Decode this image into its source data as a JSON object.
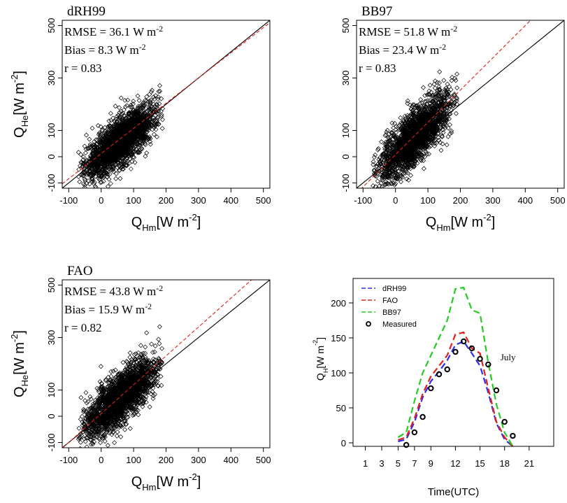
{
  "chart_data": [
    {
      "type": "scatter",
      "title": "dRH99",
      "stats": [
        "RMSE = 36.1 W m-2",
        "Bias = 8.3 W m-2",
        "r = 0.83"
      ],
      "xlabel": "Q_Hm[W m^-2]",
      "ylabel": "Q_He[W m^-2]",
      "xlim": [
        -120,
        520
      ],
      "ylim": [
        -120,
        520
      ],
      "xticks": [
        -100,
        0,
        100,
        200,
        300,
        400,
        500
      ],
      "yticks": [
        -100,
        0,
        100,
        300,
        500
      ],
      "lines": [
        {
          "kind": "one-to-one",
          "color": "#000000",
          "slope": 1,
          "intercept": 0
        },
        {
          "kind": "fit",
          "color": "#e0201b",
          "slope": 0.96,
          "intercept": 12
        }
      ],
      "cloud": {
        "x_range": [
          -70,
          190
        ],
        "center_x": 60,
        "center_y": 60,
        "spread_y": 45,
        "slope": 0.95
      }
    },
    {
      "type": "scatter",
      "title": "BB97",
      "stats": [
        "RMSE = 51.8 W m-2",
        "Bias = 23.4 W m-2",
        "r = 0.83"
      ],
      "xlabel": "Q_Hm[W m^-2]",
      "ylabel": "",
      "xlim": [
        -120,
        520
      ],
      "ylim": [
        -120,
        520
      ],
      "xticks": [
        -100,
        0,
        100,
        200,
        300,
        400,
        500
      ],
      "yticks": [
        -100,
        0,
        100,
        300,
        500
      ],
      "lines": [
        {
          "kind": "one-to-one",
          "color": "#000000",
          "slope": 1,
          "intercept": 0
        },
        {
          "kind": "fit",
          "color": "#e0201b",
          "slope": 1.23,
          "intercept": 8
        }
      ],
      "cloud": {
        "x_range": [
          -70,
          190
        ],
        "center_x": 60,
        "center_y": 75,
        "spread_y": 50,
        "slope": 1.15
      }
    },
    {
      "type": "scatter",
      "title": "FAO",
      "stats": [
        "RMSE = 43.8 W m-2",
        "Bias = 15.9 W m-2",
        "r = 0.82"
      ],
      "xlabel": "Q_Hm[W m^-2]",
      "ylabel": "Q_He[W m^-2]",
      "xlim": [
        -120,
        520
      ],
      "ylim": [
        -120,
        520
      ],
      "xticks": [
        -100,
        0,
        100,
        200,
        300,
        400,
        500
      ],
      "yticks": [
        -100,
        0,
        100,
        300,
        500
      ],
      "lines": [
        {
          "kind": "one-to-one",
          "color": "#000000",
          "slope": 1,
          "intercept": 0
        },
        {
          "kind": "fit",
          "color": "#e0201b",
          "slope": 1.1,
          "intercept": 10
        }
      ],
      "cloud": {
        "x_range": [
          -70,
          190
        ],
        "center_x": 60,
        "center_y": 70,
        "spread_y": 47,
        "slope": 1.05
      }
    },
    {
      "type": "line",
      "title": "",
      "annotation": "July",
      "xlabel": "Time(UTC)",
      "ylabel": "Q_H[W m^-2]",
      "xlim": [
        -0.5,
        24
      ],
      "ylim": [
        -5,
        235
      ],
      "xticks": [
        1,
        3,
        5,
        7,
        9,
        12,
        15,
        18,
        21
      ],
      "yticks": [
        0,
        50,
        100,
        150,
        200
      ],
      "legend": "top-left",
      "series": [
        {
          "name": "dRH99",
          "color": "#2d2df0",
          "style": "dashed",
          "x": [
            5,
            6,
            7,
            8,
            9,
            10,
            11,
            12,
            13,
            14,
            15,
            16,
            17,
            18,
            19
          ],
          "y": [
            2,
            5,
            30,
            65,
            88,
            102,
            118,
            140,
            145,
            128,
            110,
            72,
            28,
            5,
            -5
          ]
        },
        {
          "name": "FAO",
          "color": "#e0201b",
          "style": "dashed",
          "x": [
            5,
            6,
            7,
            8,
            9,
            10,
            11,
            12,
            13,
            14,
            15,
            16,
            17,
            18,
            19
          ],
          "y": [
            4,
            8,
            35,
            70,
            95,
            110,
            125,
            155,
            158,
            135,
            128,
            78,
            30,
            8,
            -5
          ]
        },
        {
          "name": "BB97",
          "color": "#22cc22",
          "style": "dashed",
          "x": [
            5,
            6,
            7,
            8,
            9,
            10,
            11,
            12,
            13,
            14,
            15,
            16,
            17,
            18,
            19
          ],
          "y": [
            8,
            15,
            60,
            100,
            125,
            150,
            175,
            220,
            222,
            190,
            185,
            115,
            55,
            15,
            -5
          ]
        },
        {
          "name": "Measured",
          "color": "#000000",
          "style": "points",
          "x": [
            6,
            7,
            8,
            9,
            10,
            11,
            12,
            13,
            14,
            15,
            16,
            17,
            18,
            19
          ],
          "y": [
            -3,
            15,
            37,
            78,
            98,
            105,
            130,
            145,
            135,
            120,
            112,
            75,
            30,
            10
          ]
        }
      ]
    }
  ]
}
